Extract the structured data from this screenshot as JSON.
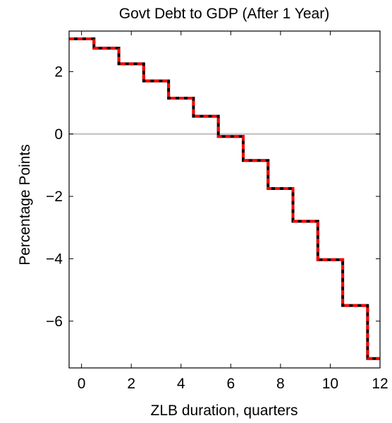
{
  "chart_data": {
    "type": "line",
    "title": "Govt Debt to GDP (After 1 Year)",
    "xlabel": "ZLB duration, quarters",
    "ylabel": "Percentage Points",
    "xlim": [
      -0.5,
      12
    ],
    "ylim": [
      -7.5,
      3.3
    ],
    "x_ticks": [
      0,
      2,
      4,
      6,
      8,
      10,
      12
    ],
    "y_ticks": [
      2,
      0,
      -2,
      -4,
      -6
    ],
    "x_tick_labels": [
      "0",
      "2",
      "4",
      "6",
      "8",
      "10",
      "12"
    ],
    "y_tick_labels": [
      "2",
      "0",
      "−2",
      "−4",
      "−6"
    ],
    "grid": false,
    "legend": "none",
    "step": "mid",
    "zero_line": 0,
    "categories": [
      0,
      1,
      2,
      3,
      4,
      5,
      6,
      7,
      8,
      9,
      10,
      11,
      12
    ],
    "series": [
      {
        "values": [
          3.05,
          2.75,
          2.25,
          1.7,
          1.15,
          0.57,
          -0.08,
          -0.85,
          -1.75,
          -2.8,
          -4.03,
          -5.5,
          -7.2
        ],
        "color": "#000000",
        "style": "solid"
      },
      {
        "values": [
          3.05,
          2.75,
          2.25,
          1.7,
          1.15,
          0.57,
          -0.08,
          -0.85,
          -1.75,
          -2.8,
          -4.03,
          -5.5,
          -7.2
        ],
        "color": "#ff0000",
        "style": "dashed"
      }
    ],
    "zero_line_color": "#c8c8c8"
  }
}
